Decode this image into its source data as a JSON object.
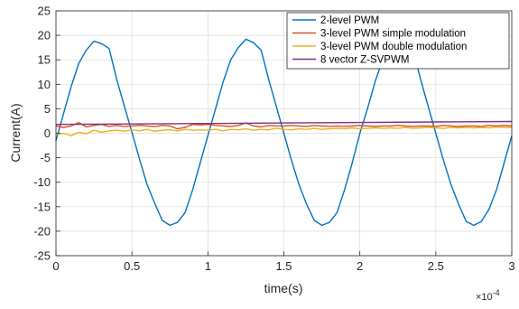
{
  "chart_data": {
    "type": "line",
    "xlabel": "time(s)",
    "ylabel": "Current(A)",
    "x_exponent_label": "×10",
    "x_exponent_power": "-4",
    "xlim": [
      0,
      3
    ],
    "ylim": [
      -25,
      25
    ],
    "x_ticks": [
      "0",
      "0.5",
      "1",
      "1.5",
      "2",
      "2.5",
      "3"
    ],
    "y_ticks": [
      "-25",
      "-20",
      "-15",
      "-10",
      "-5",
      "0",
      "5",
      "10",
      "15",
      "20",
      "25"
    ],
    "grid": true,
    "legend_position": "top-right",
    "series": [
      {
        "name": "2-level PWM",
        "color": "#0072BD",
        "x": [
          0,
          0.05,
          0.1,
          0.15,
          0.2,
          0.25,
          0.3,
          0.35,
          0.4,
          0.45,
          0.5,
          0.55,
          0.6,
          0.65,
          0.7,
          0.75,
          0.8,
          0.85,
          0.9,
          0.95,
          1.0,
          1.05,
          1.1,
          1.15,
          1.2,
          1.25,
          1.3,
          1.35,
          1.4,
          1.45,
          1.5,
          1.55,
          1.6,
          1.65,
          1.7,
          1.75,
          1.8,
          1.85,
          1.9,
          1.95,
          2.0,
          2.05,
          2.1,
          2.15,
          2.2,
          2.25,
          2.3,
          2.35,
          2.4,
          2.45,
          2.5,
          2.55,
          2.6,
          2.65,
          2.7,
          2.75,
          2.8,
          2.85,
          2.9,
          2.95,
          3.0
        ],
        "values": [
          -1.5,
          4,
          9.5,
          14.3,
          17,
          18.8,
          18.3,
          17.3,
          11,
          5.5,
          0.2,
          -5.3,
          -10.5,
          -14.3,
          -17.8,
          -18.8,
          -18.2,
          -16.2,
          -11.5,
          -6,
          -0.5,
          5,
          10.5,
          15,
          17.5,
          19.2,
          18.5,
          17,
          11,
          5.5,
          0,
          -5.5,
          -10.5,
          -14.5,
          -17.8,
          -18.8,
          -18.2,
          -16.2,
          -11.5,
          -6,
          0,
          5,
          10.5,
          15,
          17.5,
          19.2,
          18.5,
          17,
          11,
          5.5,
          0,
          -5.5,
          -10.5,
          -14.5,
          -18,
          -18.8,
          -18,
          -15.5,
          -11.5,
          -6,
          -0.5
        ]
      },
      {
        "name": "3-level PWM simple modulation",
        "color": "#D95319",
        "x": [
          0,
          0.05,
          0.1,
          0.15,
          0.2,
          0.25,
          0.3,
          0.35,
          0.4,
          0.45,
          0.5,
          0.55,
          0.6,
          0.65,
          0.7,
          0.75,
          0.8,
          0.85,
          0.9,
          0.95,
          1.0,
          1.05,
          1.1,
          1.15,
          1.2,
          1.25,
          1.3,
          1.35,
          1.4,
          1.45,
          1.5,
          1.55,
          1.6,
          1.65,
          1.7,
          1.75,
          1.8,
          1.85,
          1.9,
          1.95,
          2.0,
          2.05,
          2.1,
          2.15,
          2.2,
          2.25,
          2.3,
          2.35,
          2.4,
          2.45,
          2.5,
          2.55,
          2.6,
          2.65,
          2.7,
          2.75,
          2.8,
          2.85,
          2.9,
          2.95,
          3.0
        ],
        "values": [
          1.5,
          1.2,
          1.5,
          2.2,
          1.3,
          1.6,
          1.8,
          1.4,
          1.6,
          1.4,
          1.5,
          1.6,
          1.5,
          1.4,
          1.6,
          1.5,
          0.9,
          1.2,
          1.8,
          1.7,
          1.8,
          1.6,
          1.5,
          1.4,
          1.6,
          2.1,
          1.5,
          1.3,
          1.6,
          1.5,
          1.5,
          1.6,
          1.5,
          1.4,
          1.6,
          1.5,
          1.4,
          1.5,
          1.4,
          1.5,
          1.6,
          1.5,
          1.4,
          1.5,
          1.5,
          1.6,
          1.5,
          1.4,
          1.5,
          1.5,
          1.4,
          1.6,
          1.5,
          1.4,
          1.5,
          1.5,
          1.4,
          1.6,
          1.5,
          1.6,
          1.5
        ]
      },
      {
        "name": "3-level PWM double modulation",
        "color": "#EDB120",
        "x": [
          0,
          0.05,
          0.1,
          0.15,
          0.2,
          0.25,
          0.3,
          0.35,
          0.4,
          0.45,
          0.5,
          0.55,
          0.6,
          0.65,
          0.7,
          0.75,
          0.8,
          0.85,
          0.9,
          0.95,
          1.0,
          1.05,
          1.1,
          1.15,
          1.2,
          1.25,
          1.3,
          1.35,
          1.4,
          1.45,
          1.5,
          1.55,
          1.6,
          1.65,
          1.7,
          1.75,
          1.8,
          1.85,
          1.9,
          1.95,
          2.0,
          2.05,
          2.1,
          2.15,
          2.2,
          2.25,
          2.3,
          2.35,
          2.4,
          2.45,
          2.5,
          2.55,
          2.6,
          2.65,
          2.7,
          2.75,
          2.8,
          2.85,
          2.9,
          2.95,
          3.0
        ],
        "values": [
          -0.2,
          0,
          -0.5,
          0.2,
          -0.1,
          0.6,
          0.2,
          0.5,
          0.6,
          0.4,
          0.7,
          0.5,
          0.8,
          0.4,
          0.6,
          0.7,
          0.5,
          0.8,
          0.6,
          0.7,
          0.6,
          0.8,
          0.5,
          0.8,
          0.7,
          0.9,
          0.6,
          0.8,
          0.7,
          1.0,
          0.8,
          0.7,
          0.9,
          0.8,
          1.0,
          0.8,
          0.9,
          1.0,
          0.9,
          1.1,
          0.9,
          1.0,
          1.1,
          1.0,
          1.1,
          1.0,
          1.2,
          1.0,
          1.1,
          1.2,
          1.1,
          1.0,
          1.2,
          1.1,
          1.2,
          1.1,
          1.2,
          1.1,
          1.3,
          1.2,
          1.2
        ]
      },
      {
        "name": "8 vector Z-SVPWM",
        "color": "#7E2F8E",
        "x": [
          0,
          0.5,
          1.0,
          1.5,
          2.0,
          2.5,
          3.0
        ],
        "values": [
          1.8,
          1.9,
          2.0,
          2.1,
          2.2,
          2.3,
          2.4
        ]
      }
    ]
  }
}
